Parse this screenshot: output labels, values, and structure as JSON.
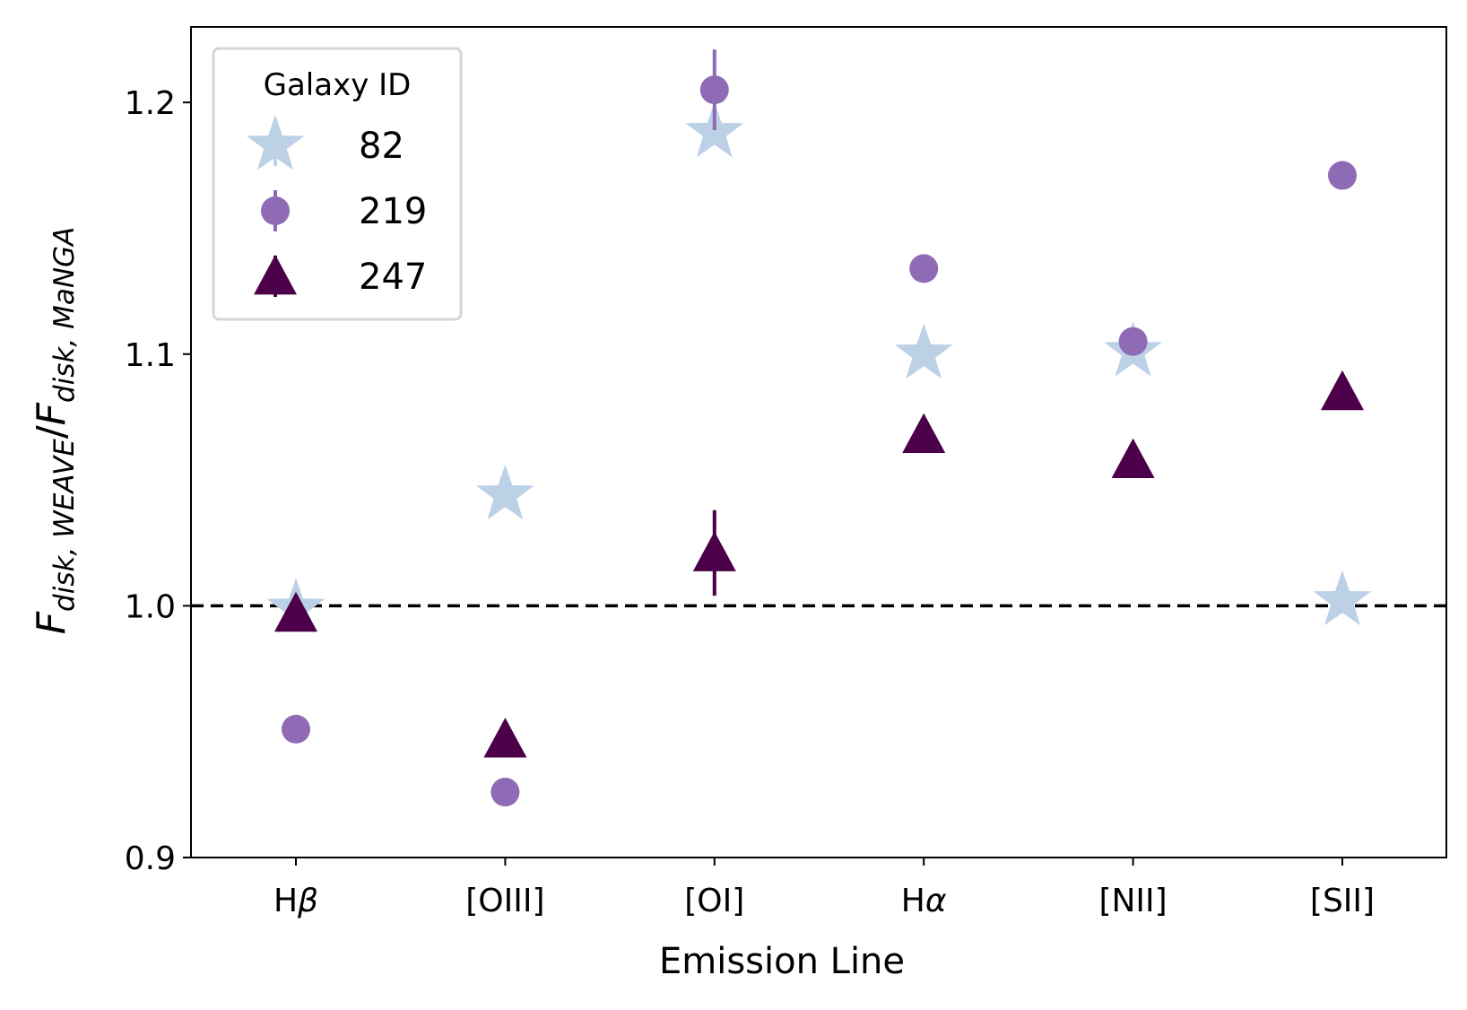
{
  "chart_data": {
    "type": "scatter",
    "categories": [
      "Hβ",
      "[OIII]",
      "[OI]",
      "Hα",
      "[NII]",
      "[SII]"
    ],
    "category_parts": [
      {
        "base": "H",
        "greek": "β"
      },
      {
        "base": "[OIII]",
        "greek": ""
      },
      {
        "base": "[OI]",
        "greek": ""
      },
      {
        "base": "H",
        "greek": "α"
      },
      {
        "base": "[NII]",
        "greek": ""
      },
      {
        "base": "[SII]",
        "greek": ""
      }
    ],
    "xlabel": "Emission Line",
    "ylabel": {
      "main_1": "F",
      "sub_1": "disk, WEAVE",
      "slash": "/",
      "main_2": "F",
      "sub_2": "disk, MaNGA"
    },
    "ylim": [
      0.9,
      1.23
    ],
    "yticks": [
      0.9,
      1.0,
      1.1,
      1.2
    ],
    "ytick_labels": [
      "0.9",
      "1.0",
      "1.1",
      "1.2"
    ],
    "reference_line": {
      "y": 1.0,
      "style": "dashed",
      "color": "#000000"
    },
    "legend": {
      "title": "Galaxy ID",
      "placement": "top-left"
    },
    "series": [
      {
        "name": "82",
        "marker": "star",
        "color": "#bdd1e6",
        "values": [
          0.999,
          1.044,
          1.188,
          1.1,
          1.101,
          1.002
        ],
        "errors": [
          0.003,
          0.003,
          0.003,
          0.003,
          0.005,
          0.003
        ]
      },
      {
        "name": "219",
        "marker": "circle",
        "color": "#8f6bb5",
        "values": [
          0.951,
          0.926,
          1.205,
          1.134,
          1.105,
          1.171
        ],
        "errors": [
          0.002,
          0.002,
          0.016,
          0.002,
          0.002,
          0.002
        ]
      },
      {
        "name": "247",
        "marker": "triangle",
        "color": "#4b0049",
        "values": [
          0.997,
          0.947,
          1.021,
          1.068,
          1.058,
          1.085
        ],
        "errors": [
          0.002,
          0.002,
          0.017,
          0.002,
          0.002,
          0.002
        ]
      }
    ]
  }
}
